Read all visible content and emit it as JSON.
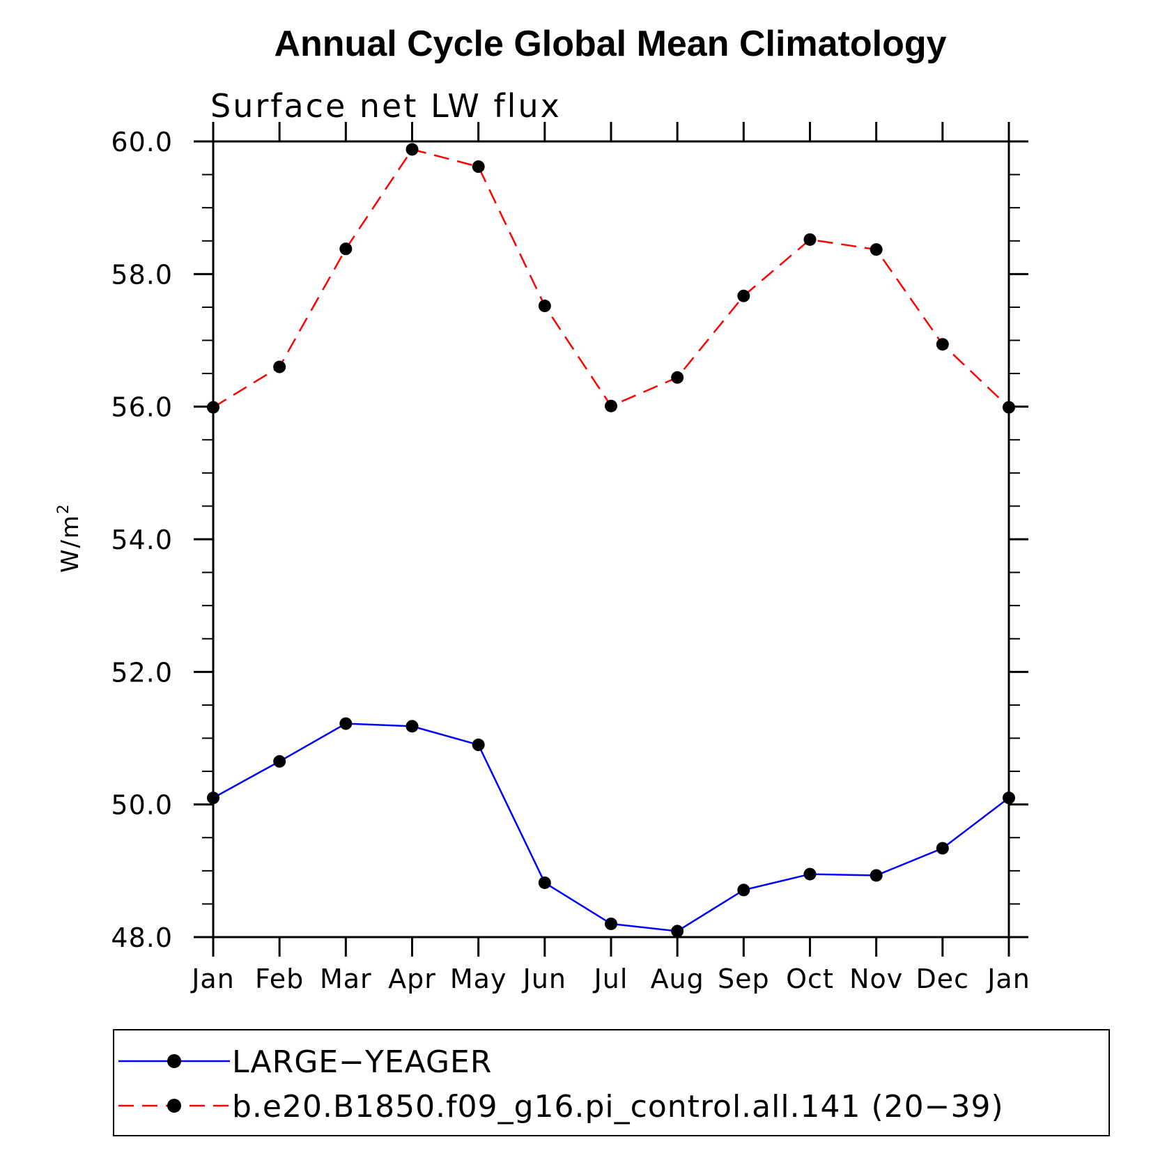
{
  "chart_data": {
    "type": "line",
    "title": "Annual Cycle Global Mean Climatology",
    "subtitle": "Surface net LW flux",
    "xlabel": "",
    "ylabel": "W/m",
    "ylabel_superscript": "2",
    "ylim": [
      48.0,
      60.0
    ],
    "yticks": [
      "48.0",
      "50.0",
      "52.0",
      "54.0",
      "56.0",
      "58.0",
      "60.0"
    ],
    "ytick_values": [
      48,
      50,
      52,
      54,
      56,
      58,
      60
    ],
    "categories": [
      "Jan",
      "Feb",
      "Mar",
      "Apr",
      "May",
      "Jun",
      "Jul",
      "Aug",
      "Sep",
      "Oct",
      "Nov",
      "Dec",
      "Jan"
    ],
    "series": [
      {
        "name": "LARGE−YEAGER",
        "color": "#0000ff",
        "style": "solid",
        "values": [
          50.1,
          50.65,
          51.22,
          51.18,
          50.9,
          48.82,
          48.2,
          48.09,
          48.71,
          48.95,
          48.93,
          49.34,
          50.1
        ]
      },
      {
        "name": "b.e20.B1850.f09_g16.pi_control.all.141 (20−39)",
        "color": "#ff0000",
        "style": "dashed",
        "values": [
          55.99,
          56.6,
          58.38,
          59.88,
          59.62,
          57.52,
          56.01,
          56.44,
          57.67,
          58.52,
          58.37,
          56.94,
          55.99
        ]
      }
    ],
    "marker_color": "#000000",
    "legend_position": "bottom",
    "grid": false
  }
}
